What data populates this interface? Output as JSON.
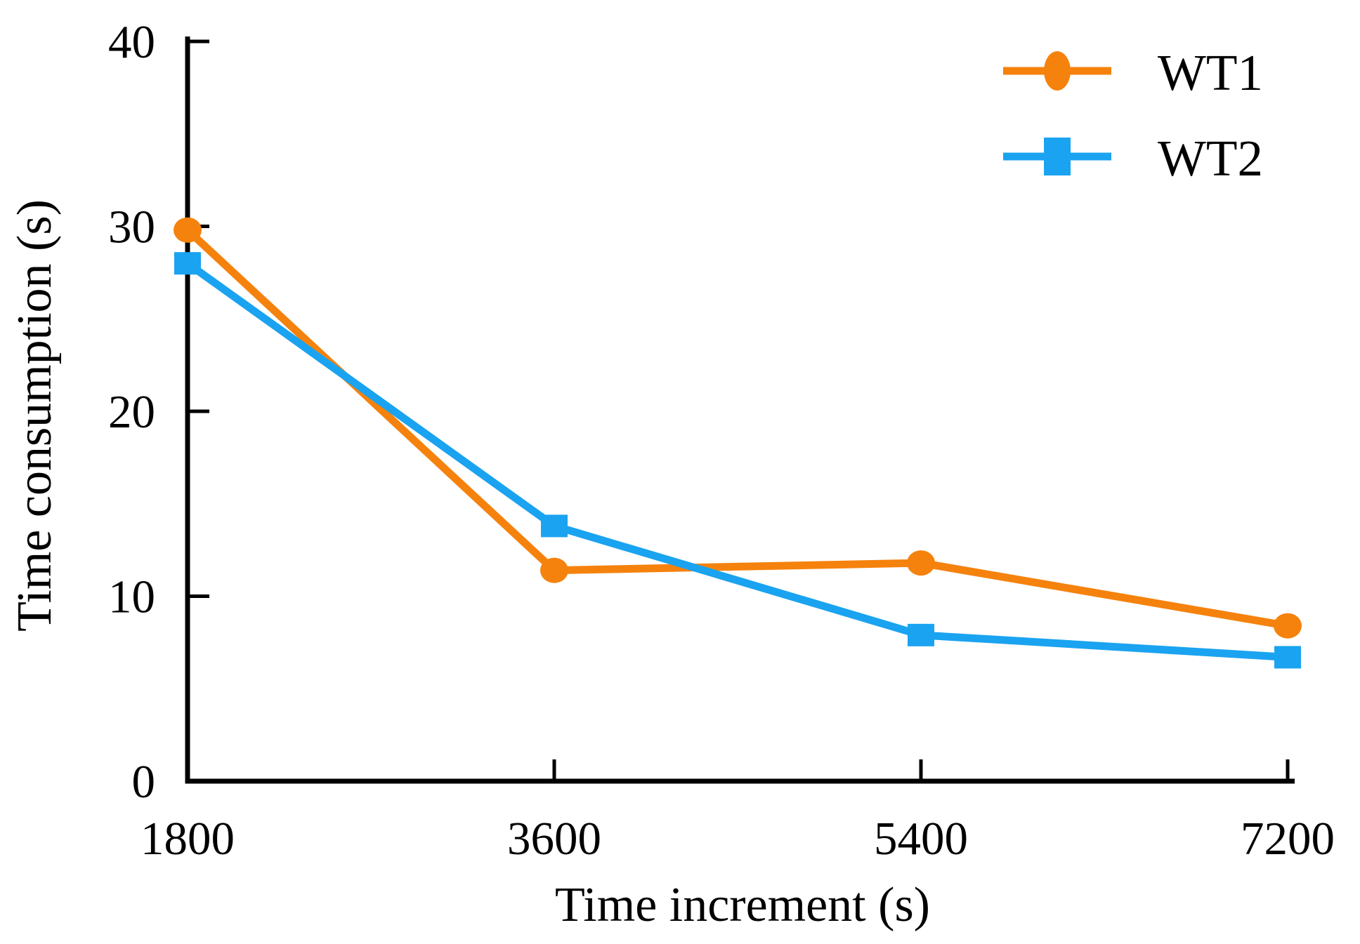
{
  "chart_data": {
    "type": "line",
    "title": "",
    "xlabel": "Time increment (s)",
    "ylabel": "Time consumption (s)",
    "x": [
      1800,
      3600,
      5400,
      7200
    ],
    "xticks": [
      1800,
      3600,
      5400,
      7200
    ],
    "yticks": [
      0,
      10,
      20,
      30,
      40
    ],
    "xlim": [
      1800,
      7200
    ],
    "ylim": [
      0,
      40
    ],
    "grid": false,
    "legend_position": "top-right",
    "axis_color": "#000000",
    "background_color": "#ffffff",
    "series": [
      {
        "name": "WT1",
        "color": "#F5820D",
        "marker": "circle",
        "values": [
          29.8,
          11.4,
          11.8,
          8.4
        ]
      },
      {
        "name": "WT2",
        "color": "#1AA3F0",
        "marker": "square",
        "values": [
          28.0,
          13.8,
          7.9,
          6.7
        ]
      }
    ]
  }
}
